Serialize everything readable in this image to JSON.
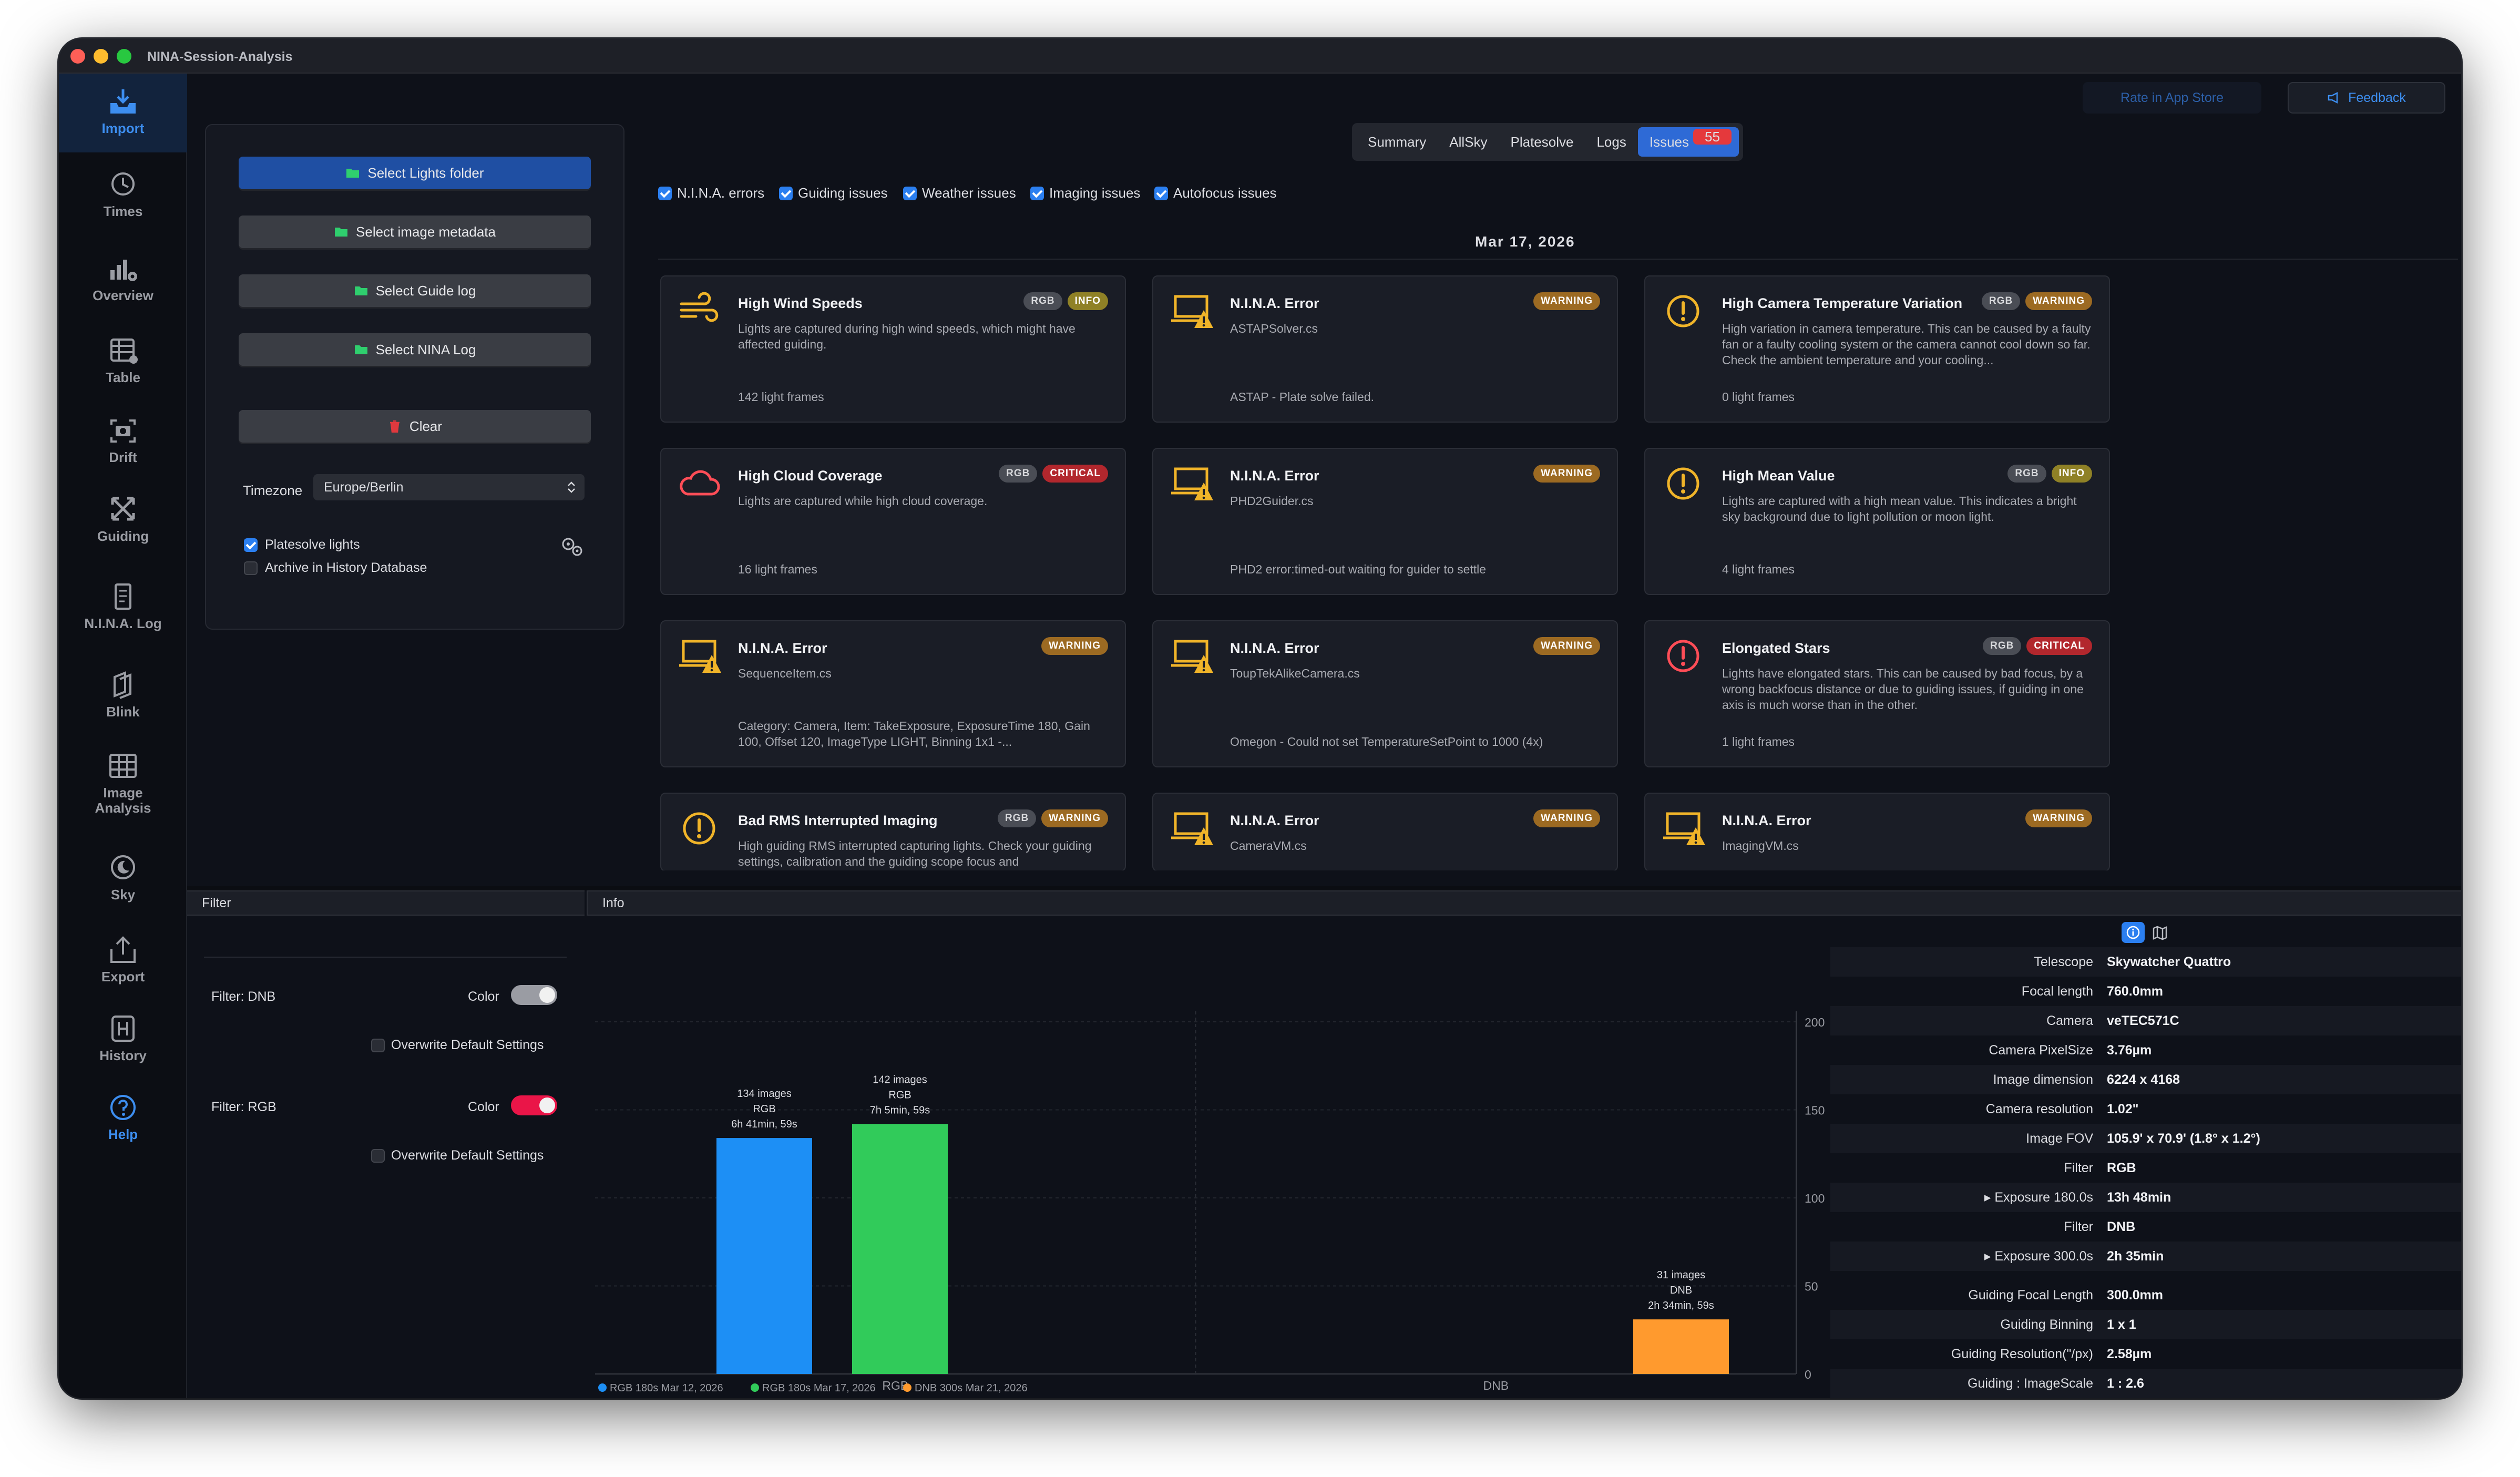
{
  "window": {
    "title": "NINA-Session-Analysis"
  },
  "colors": {
    "accent": "#2e6ad6",
    "rgb_series": "#1d8ff5",
    "rgb2_series": "#31cb5a",
    "dnb_series": "#ff9a2e",
    "critical": "#b2272d",
    "warning": "#9c6a22",
    "info": "#8f8126"
  },
  "sidebar": {
    "items": [
      {
        "label": "Import",
        "icon": "tray-download-icon"
      },
      {
        "label": "Times",
        "icon": "clock-icon"
      },
      {
        "label": "Overview",
        "icon": "chart-gear-icon"
      },
      {
        "label": "Table",
        "icon": "table-icon"
      },
      {
        "label": "Drift",
        "icon": "camera-viewfinder-icon"
      },
      {
        "label": "Guiding",
        "icon": "arrows-expand-icon"
      },
      {
        "label": "N.I.N.A. Log",
        "icon": "document-icon"
      },
      {
        "label": "Blink",
        "icon": "layers-icon"
      },
      {
        "label": "Image Analysis",
        "icon": "grid-icon"
      },
      {
        "label": "Sky",
        "icon": "moon-icon"
      },
      {
        "label": "Export",
        "icon": "share-icon"
      },
      {
        "label": "History",
        "icon": "history-box-icon"
      },
      {
        "label": "Help",
        "icon": "question-circle-icon"
      }
    ]
  },
  "topbar": {
    "rate_label": "Rate in App Store",
    "feedback_label": "Feedback"
  },
  "import_panel": {
    "select_lights": "Select Lights folder",
    "select_metadata": "Select image metadata",
    "select_guide_log": "Select Guide log",
    "select_nina_log": "Select NINA Log",
    "clear": "Clear",
    "timezone_label": "Timezone",
    "timezone_value": "Europe/Berlin",
    "platesolve_label": "Platesolve lights",
    "platesolve_checked": true,
    "archive_label": "Archive in History Database",
    "archive_checked": false
  },
  "tabs": [
    {
      "label": "Summary"
    },
    {
      "label": "AllSky"
    },
    {
      "label": "Platesolve"
    },
    {
      "label": "Logs"
    },
    {
      "label": "Issues",
      "badge": "55",
      "active": true
    }
  ],
  "filters": [
    {
      "label": "N.I.N.A. errors",
      "checked": true
    },
    {
      "label": "Guiding issues",
      "checked": true
    },
    {
      "label": "Weather issues",
      "checked": true
    },
    {
      "label": "Imaging issues",
      "checked": true
    },
    {
      "label": "Autofocus issues",
      "checked": true
    }
  ],
  "issues_date": "Mar 17, 2026",
  "issues": [
    {
      "title": "High Wind Speeds",
      "tags": [
        "RGB",
        "INFO"
      ],
      "desc": "Lights are captured during high wind speeds, which might have affected guiding.",
      "foot": "142 light frames",
      "icon": "wind-icon"
    },
    {
      "title": "N.I.N.A. Error",
      "tags": [
        "WARNING"
      ],
      "desc": "ASTAPSolver.cs",
      "foot": "ASTAP - Plate solve failed.",
      "icon": "laptop-warning-icon"
    },
    {
      "title": "High Camera Temperature Variation",
      "tags": [
        "RGB",
        "WARNING"
      ],
      "desc": "High variation in camera temperature. This can be caused by a faulty fan or a faulty cooling system or the camera cannot cool down so far. Check the ambient temperature and your cooling...",
      "foot": "0 light frames",
      "icon": "exclamation-circle-icon"
    },
    {
      "title": "High Cloud Coverage",
      "tags": [
        "RGB",
        "CRITICAL"
      ],
      "desc": "Lights are captured while high cloud coverage.",
      "foot": "16 light frames",
      "icon": "cloud-icon"
    },
    {
      "title": "N.I.N.A. Error",
      "tags": [
        "WARNING"
      ],
      "desc": "PHD2Guider.cs",
      "foot": "PHD2 error:timed-out waiting for guider to settle",
      "icon": "laptop-warning-icon"
    },
    {
      "title": "High Mean Value",
      "tags": [
        "RGB",
        "INFO"
      ],
      "desc": "Lights are captured with a high mean value. This indicates a bright sky background due to light pollution or moon light.",
      "foot": "4 light frames",
      "icon": "exclamation-circle-icon"
    },
    {
      "title": "N.I.N.A. Error",
      "tags": [
        "WARNING"
      ],
      "desc": "SequenceItem.cs",
      "foot": "Category: Camera, Item: TakeExposure, ExposureTime 180, Gain 100, Offset 120, ImageType LIGHT, Binning 1x1 -...",
      "icon": "laptop-warning-icon"
    },
    {
      "title": "N.I.N.A. Error",
      "tags": [
        "WARNING"
      ],
      "desc": "ToupTekAlikeCamera.cs",
      "foot": "Omegon - Could not set TemperatureSetPoint to 1000 (4x)",
      "icon": "laptop-warning-icon"
    },
    {
      "title": "Elongated Stars",
      "tags": [
        "RGB",
        "CRITICAL"
      ],
      "desc": "Lights have elongated stars. This can be caused by bad focus, by a wrong backfocus distance or due to guiding issues, if guiding in one axis is much worse than in the other.",
      "foot": "1 light frames",
      "icon": "exclamation-circle-icon"
    },
    {
      "title": "Bad RMS Interrupted Imaging",
      "tags": [
        "RGB",
        "WARNING"
      ],
      "desc": "High guiding RMS interrupted capturing lights. Check your guiding settings, calibration and the guiding scope focus and",
      "foot": "",
      "icon": "exclamation-circle-icon"
    },
    {
      "title": "N.I.N.A. Error",
      "tags": [
        "WARNING"
      ],
      "desc": "CameraVM.cs",
      "foot": "",
      "icon": "laptop-warning-icon"
    },
    {
      "title": "N.I.N.A. Error",
      "tags": [
        "WARNING"
      ],
      "desc": "ImagingVM.cs",
      "foot": "",
      "icon": "laptop-warning-icon"
    }
  ],
  "filter_panel": {
    "header": "Filter",
    "rows": [
      {
        "label": "Filter: DNB",
        "color_label": "Color",
        "overwrite_label": "Overwrite Default Settings",
        "color": "#9a9ca3"
      },
      {
        "label": "Filter: RGB",
        "color_label": "Color",
        "overwrite_label": "Overwrite Default Settings",
        "color": "#ea1548"
      }
    ]
  },
  "info_panel": {
    "header": "Info",
    "rows": [
      {
        "key": "Telescope",
        "value": "Skywatcher Quattro"
      },
      {
        "key": "Focal length",
        "value": "760.0mm"
      },
      {
        "key": "Camera",
        "value": "veTEC571C"
      },
      {
        "key": "Camera PixelSize",
        "value": "3.76µm"
      },
      {
        "key": "Image dimension",
        "value": "6224 x 4168"
      },
      {
        "key": "Camera resolution",
        "value": "1.02\""
      },
      {
        "key": "Image FOV",
        "value": "105.9' x 70.9' (1.8° x 1.2°)"
      },
      {
        "key": "Filter",
        "value": "RGB"
      },
      {
        "key": "▸ Exposure 180.0s",
        "value": "13h 48min"
      },
      {
        "key": "Filter",
        "value": "DNB"
      },
      {
        "key": "▸ Exposure 300.0s",
        "value": "2h 35min"
      },
      {
        "key": "Guiding Focal Length",
        "value": "300.0mm"
      },
      {
        "key": "Guiding Binning",
        "value": "1 x 1"
      },
      {
        "key": "Guiding Resolution(\"/px)",
        "value": "2.58µm"
      },
      {
        "key": "Guiding : ImageScale",
        "value": "1 : 2.6"
      }
    ]
  },
  "chart_data": {
    "type": "bar",
    "categories": [
      "RGB",
      "DNB"
    ],
    "ylim": [
      0,
      200
    ],
    "yticks": [
      "0",
      "50",
      "100",
      "150",
      "200"
    ],
    "grid": true,
    "legend_placement": "bottom-left",
    "series": [
      {
        "name": "RGB 180s Mar 12, 2026",
        "category": "RGB",
        "value": 134,
        "labels": [
          "134 images",
          "RGB",
          "6h 41min, 59s"
        ],
        "color": "#1d8ff5"
      },
      {
        "name": "RGB 180s Mar 17, 2026",
        "category": "RGB",
        "value": 142,
        "labels": [
          "142 images",
          "RGB",
          "7h 5min, 59s"
        ],
        "color": "#31cb5a"
      },
      {
        "name": "DNB 300s Mar 21, 2026",
        "category": "DNB",
        "value": 31,
        "labels": [
          "31 images",
          "DNB",
          "2h 34min, 59s"
        ],
        "color": "#ff9a2e"
      }
    ]
  }
}
